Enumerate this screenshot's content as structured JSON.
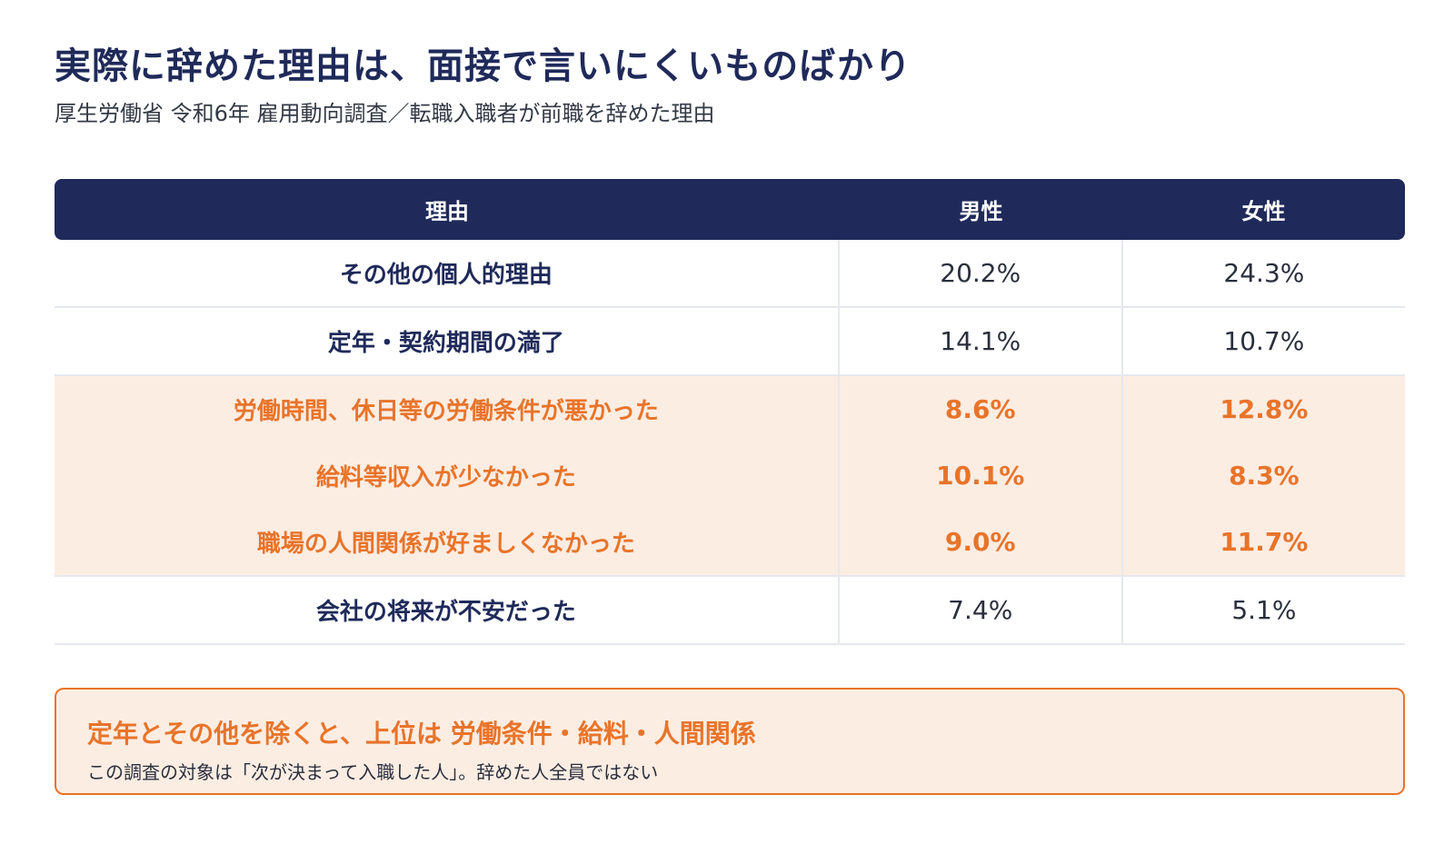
{
  "title": "実際に辞めた理由は、面接で言いにくいものばかり",
  "subtitle": "厚生労働省 令和6年 雇用動向調査／転職入職者が前職を辞めた理由",
  "table": {
    "headers": [
      "理由",
      "男性",
      "女性"
    ],
    "rows": [
      {
        "reason": "その他の個人的理由",
        "male": "20.2%",
        "female": "24.3%"
      },
      {
        "reason": "定年・契約期間の満了",
        "male": "14.1%",
        "female": "10.7%"
      },
      {
        "reason": "労働時間、休日等の労働条件が悪かった",
        "male": "8.6%",
        "female": "12.8%"
      },
      {
        "reason": "給料等収入が少なかった",
        "male": "10.1%",
        "female": "8.3%"
      },
      {
        "reason": "職場の人間関係が好ましくなかった",
        "male": "9.0%",
        "female": "11.7%"
      },
      {
        "reason": "会社の将来が不安だった",
        "male": "7.4%",
        "female": "5.1%"
      }
    ]
  },
  "callout": {
    "headline": "定年とその他を除くと、上位は 労働条件・給料・人間関係",
    "note": "この調査の対象は「次が決まって入職した人」。辞めた人全員ではない"
  },
  "colors": {
    "navy": "#1f2a5a",
    "accent": "#e8742a",
    "highlight_bg": "#fcede3"
  }
}
